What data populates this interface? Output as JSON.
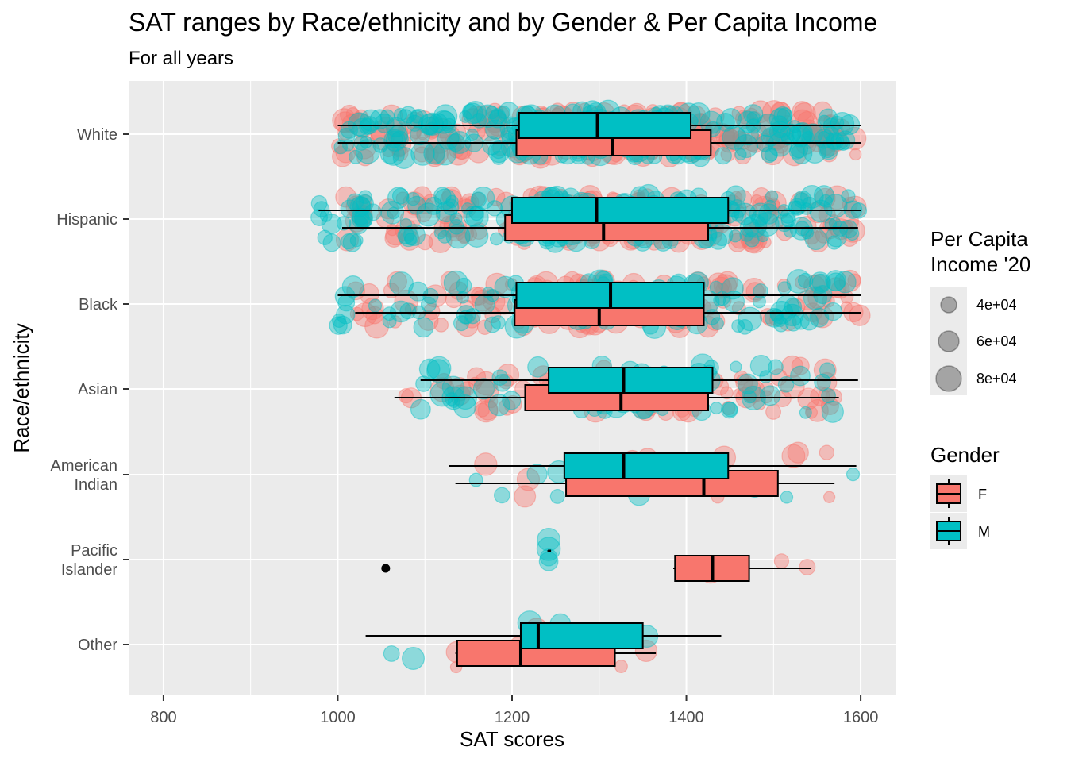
{
  "title": "SAT ranges by Race/ethnicity and by Gender & Per Capita Income",
  "subtitle": "For all years",
  "chart_data": {
    "type": "boxplot",
    "orientation": "horizontal",
    "title": "SAT ranges by Race/ethnicity and by Gender & Per Capita Income",
    "subtitle": "For all years",
    "xlabel": "SAT scores",
    "ylabel": "Race/ethnicity",
    "xlim": [
      760,
      1640
    ],
    "xticks": [
      800,
      1000,
      1200,
      1400,
      1600
    ],
    "grid": true,
    "categories": [
      [
        "White"
      ],
      [
        "Hispanic"
      ],
      [
        "Black"
      ],
      [
        "Asian"
      ],
      [
        "American",
        "Indian"
      ],
      [
        "Pacific",
        "Islander"
      ],
      [
        "Other"
      ]
    ],
    "series": [
      {
        "name": "F",
        "color": "#F8766D",
        "boxes": [
          {
            "lw": 1000,
            "q1": 1205,
            "med": 1315,
            "q3": 1428,
            "uw": 1600,
            "outliers": []
          },
          {
            "lw": 1005,
            "q1": 1192,
            "med": 1305,
            "q3": 1425,
            "uw": 1597,
            "outliers": []
          },
          {
            "lw": 1020,
            "q1": 1203,
            "med": 1300,
            "q3": 1420,
            "uw": 1600,
            "outliers": []
          },
          {
            "lw": 1065,
            "q1": 1215,
            "med": 1325,
            "q3": 1425,
            "uw": 1575,
            "outliers": []
          },
          {
            "lw": 1135,
            "q1": 1262,
            "med": 1420,
            "q3": 1505,
            "uw": 1570,
            "outliers": []
          },
          {
            "lw": 1385,
            "q1": 1387,
            "med": 1430,
            "q3": 1472,
            "uw": 1543,
            "outliers": [
              1055
            ]
          },
          {
            "lw": 1135,
            "q1": 1137,
            "med": 1210,
            "q3": 1318,
            "uw": 1365,
            "outliers": []
          }
        ]
      },
      {
        "name": "M",
        "color": "#00BFC4",
        "boxes": [
          {
            "lw": 1000,
            "q1": 1208,
            "med": 1298,
            "q3": 1405,
            "uw": 1600,
            "outliers": []
          },
          {
            "lw": 978,
            "q1": 1200,
            "med": 1297,
            "q3": 1448,
            "uw": 1600,
            "outliers": []
          },
          {
            "lw": 1000,
            "q1": 1205,
            "med": 1313,
            "q3": 1420,
            "uw": 1600,
            "outliers": []
          },
          {
            "lw": 1095,
            "q1": 1242,
            "med": 1328,
            "q3": 1430,
            "uw": 1597,
            "outliers": []
          },
          {
            "lw": 1128,
            "q1": 1260,
            "med": 1328,
            "q3": 1448,
            "uw": 1595,
            "outliers": []
          },
          {
            "lw": 1242,
            "q1": 1242,
            "med": 1242,
            "q3": 1242,
            "uw": 1242,
            "outliers": []
          },
          {
            "lw": 1032,
            "q1": 1210,
            "med": 1230,
            "q3": 1350,
            "uw": 1440,
            "outliers": []
          }
        ]
      }
    ],
    "size_legend": {
      "title": [
        "Per Capita",
        "Income '20"
      ],
      "values": [
        "4e+04",
        "6e+04",
        "8e+04"
      ]
    },
    "color_legend": {
      "title": "Gender",
      "values": [
        "F",
        "M"
      ]
    }
  }
}
